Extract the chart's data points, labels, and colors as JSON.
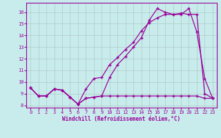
{
  "xlabel": "Windchill (Refroidissement éolien,°C)",
  "background_color": "#c8ecec",
  "line_color": "#990099",
  "xlim": [
    -0.5,
    23.5
  ],
  "ylim": [
    7.8,
    16.8
  ],
  "xticks": [
    0,
    1,
    2,
    3,
    4,
    5,
    6,
    7,
    8,
    9,
    10,
    11,
    12,
    13,
    14,
    15,
    16,
    17,
    18,
    19,
    20,
    21,
    22,
    23
  ],
  "yticks": [
    8,
    9,
    10,
    11,
    12,
    13,
    14,
    15,
    16
  ],
  "series1_x": [
    0,
    1,
    2,
    3,
    4,
    5,
    6,
    7,
    8,
    9,
    10,
    11,
    12,
    13,
    14,
    15,
    16,
    17,
    18,
    19,
    20,
    21,
    22,
    23
  ],
  "series1_y": [
    9.5,
    8.8,
    8.8,
    9.4,
    9.3,
    8.7,
    8.1,
    8.6,
    8.7,
    8.8,
    10.4,
    11.5,
    12.2,
    13.0,
    13.8,
    15.3,
    16.3,
    16.0,
    15.8,
    15.8,
    16.3,
    14.3,
    10.3,
    8.6
  ],
  "series2_x": [
    0,
    1,
    2,
    3,
    4,
    5,
    6,
    7,
    8,
    9,
    10,
    11,
    12,
    13,
    14,
    15,
    16,
    17,
    18,
    19,
    20,
    21,
    22,
    23
  ],
  "series2_y": [
    9.5,
    8.8,
    8.8,
    9.4,
    9.3,
    8.7,
    8.1,
    9.4,
    10.3,
    10.4,
    11.5,
    12.1,
    12.8,
    13.4,
    14.4,
    15.1,
    15.5,
    15.8,
    15.8,
    15.9,
    15.8,
    15.8,
    9.0,
    8.6
  ],
  "series3_x": [
    0,
    1,
    2,
    3,
    4,
    5,
    6,
    7,
    8,
    9,
    10,
    11,
    12,
    13,
    14,
    15,
    16,
    17,
    18,
    19,
    20,
    21,
    22,
    23
  ],
  "series3_y": [
    9.5,
    8.8,
    8.8,
    9.4,
    9.3,
    8.7,
    8.1,
    8.6,
    8.7,
    8.8,
    8.8,
    8.8,
    8.8,
    8.8,
    8.8,
    8.8,
    8.8,
    8.8,
    8.8,
    8.8,
    8.8,
    8.8,
    8.6,
    8.6
  ],
  "grid_color": "#b0c8c8",
  "marker": "+"
}
